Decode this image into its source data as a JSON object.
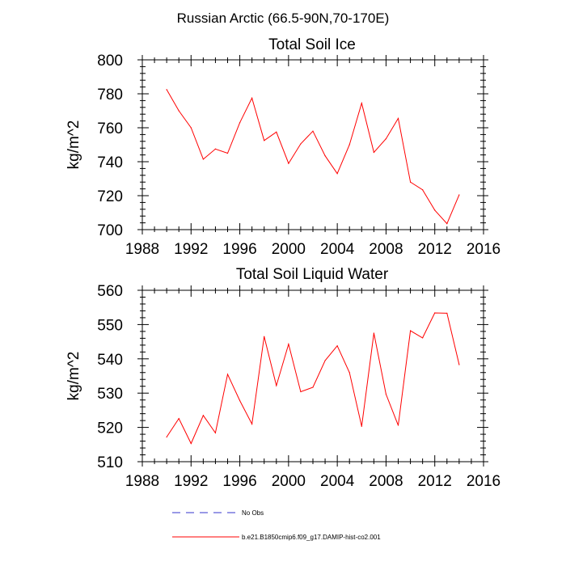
{
  "suptitle": "Russian Arctic (66.5-90N,70-170E)",
  "legend": [
    {
      "label": "No Obs",
      "color": "#3333cc",
      "dash": true
    },
    {
      "label": "b.e21.B1850cmip6.f09_g17.DAMIP-hist-co2.001",
      "color": "#ff0000",
      "dash": false
    }
  ],
  "chart_data": [
    {
      "type": "line",
      "title": "Total Soil Ice",
      "ylabel": "kg/m^2",
      "xlabel": "",
      "xlim": [
        1988,
        2016
      ],
      "ylim": [
        700,
        800
      ],
      "xticks": [
        1988,
        1992,
        1996,
        2000,
        2004,
        2008,
        2012,
        2016
      ],
      "yticks": [
        700,
        720,
        740,
        760,
        780,
        800
      ],
      "series": [
        {
          "name": "b.e21.B1850cmip6.f09_g17.DAMIP-hist-co2.001",
          "color": "#ff0000",
          "x": [
            1990,
            1991,
            1992,
            1993,
            1994,
            1995,
            1996,
            1997,
            1998,
            1999,
            2000,
            2001,
            2002,
            2003,
            2004,
            2005,
            2006,
            2007,
            2008,
            2009,
            2010,
            2011,
            2012,
            2013,
            2014
          ],
          "values": [
            782.5,
            770,
            760,
            741.5,
            747.5,
            745,
            763,
            777.5,
            752.5,
            757.5,
            739,
            750.5,
            758,
            743.5,
            733,
            750,
            774.5,
            745.5,
            753.5,
            765.5,
            728,
            723.5,
            711.5,
            703.5,
            720.5
          ]
        }
      ]
    },
    {
      "type": "line",
      "title": "Total Soil Liquid Water",
      "ylabel": "kg/m^2",
      "xlabel": "",
      "xlim": [
        1988,
        2016
      ],
      "ylim": [
        510,
        560
      ],
      "xticks": [
        1988,
        1992,
        1996,
        2000,
        2004,
        2008,
        2012,
        2016
      ],
      "yticks": [
        510,
        520,
        530,
        540,
        550,
        560
      ],
      "series": [
        {
          "name": "b.e21.B1850cmip6.f09_g17.DAMIP-hist-co2.001",
          "color": "#ff0000",
          "x": [
            1990,
            1991,
            1992,
            1993,
            1994,
            1995,
            1996,
            1997,
            1998,
            1999,
            2000,
            2001,
            2002,
            2003,
            2004,
            2005,
            2006,
            2007,
            2008,
            2009,
            2010,
            2011,
            2012,
            2013,
            2014
          ],
          "values": [
            517.2,
            522.6,
            515.3,
            523.5,
            518.4,
            535.5,
            527.8,
            521,
            546.5,
            532.2,
            544.3,
            530.4,
            531.7,
            539.5,
            543.8,
            536,
            520.3,
            547.5,
            529.7,
            520.6,
            548.2,
            546.1,
            553.4,
            553.3,
            538.3
          ]
        }
      ]
    }
  ]
}
